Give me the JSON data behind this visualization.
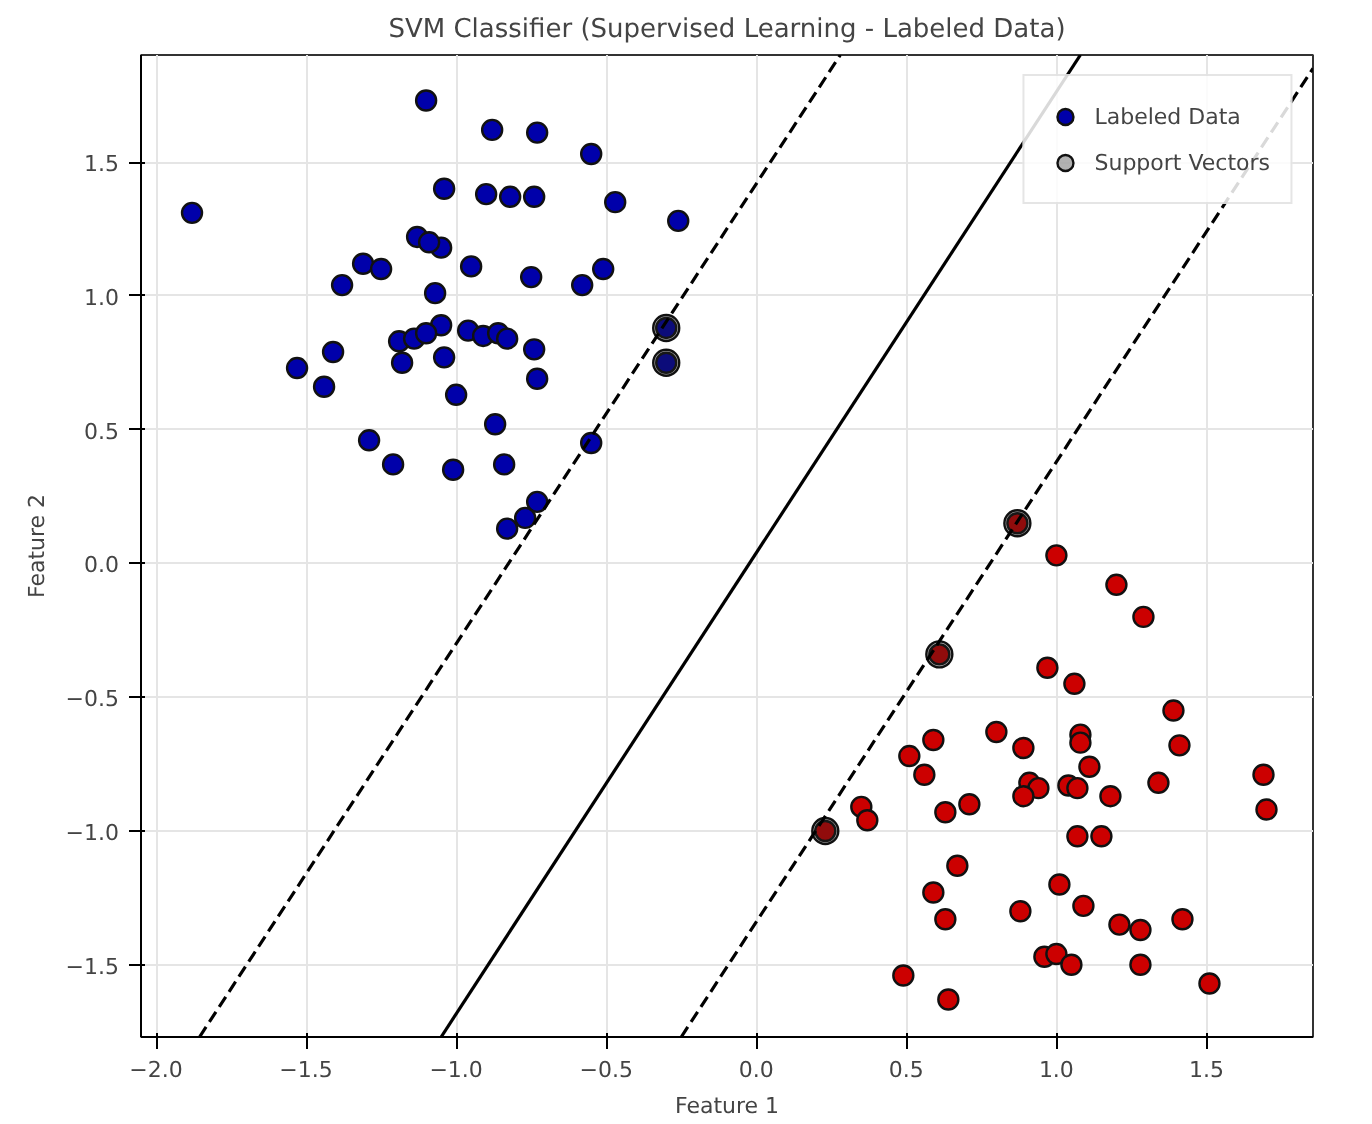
{
  "chart_data": {
    "type": "scatter",
    "title": "SVM Classifier (Supervised Learning - Labeled Data)",
    "xlabel": "Feature 1",
    "ylabel": "Feature 2",
    "xlim": [
      -2.05,
      1.855
    ],
    "ylim": [
      -1.77,
      1.9
    ],
    "xticks": [
      {
        "value": -2.0,
        "label": "−2.0"
      },
      {
        "value": -1.5,
        "label": "−1.5"
      },
      {
        "value": -1.0,
        "label": "−1.0"
      },
      {
        "value": -0.5,
        "label": "−0.5"
      },
      {
        "value": 0.0,
        "label": "0.0"
      },
      {
        "value": 0.5,
        "label": "0.5"
      },
      {
        "value": 1.0,
        "label": "1.0"
      },
      {
        "value": 1.5,
        "label": "1.5"
      }
    ],
    "yticks": [
      {
        "value": -1.5,
        "label": "−1.5"
      },
      {
        "value": -1.0,
        "label": "−1.0"
      },
      {
        "value": -0.5,
        "label": "−0.5"
      },
      {
        "value": 0.0,
        "label": "0.0"
      },
      {
        "value": 0.5,
        "label": "0.5"
      },
      {
        "value": 1.0,
        "label": "1.0"
      },
      {
        "value": 1.5,
        "label": "1.5"
      }
    ],
    "grid": true,
    "legend": "top right",
    "marker": "circle",
    "series": [
      {
        "name": "Labeled Data",
        "color": "#0000aa",
        "x": [
          -1.1,
          -0.88,
          -0.73,
          -0.55,
          -1.88,
          -1.04,
          -0.9,
          -0.82,
          -0.74,
          -0.47,
          -0.26,
          -1.13,
          -1.05,
          -1.09,
          -1.31,
          -1.25,
          -1.38,
          -0.95,
          -0.75,
          -0.51,
          -0.58,
          -1.07,
          -0.3,
          -0.3,
          -1.05,
          -1.19,
          -1.14,
          -1.1,
          -0.96,
          -0.91,
          -0.86,
          -0.83,
          -0.74,
          -1.18,
          -1.04,
          -1.41,
          -1.53,
          -1.44,
          -0.73,
          -1.0,
          -0.87,
          -0.55,
          -1.29,
          -1.21,
          -1.01,
          -0.84,
          -0.73,
          -0.77,
          -0.83
        ],
        "values": [
          1.73,
          1.62,
          1.61,
          1.53,
          1.31,
          1.4,
          1.38,
          1.37,
          1.37,
          1.35,
          1.28,
          1.22,
          1.18,
          1.2,
          1.12,
          1.1,
          1.04,
          1.11,
          1.07,
          1.1,
          1.04,
          1.01,
          0.88,
          0.75,
          0.89,
          0.83,
          0.84,
          0.86,
          0.87,
          0.85,
          0.86,
          0.84,
          0.8,
          0.75,
          0.77,
          0.79,
          0.73,
          0.66,
          0.69,
          0.63,
          0.52,
          0.45,
          0.46,
          0.37,
          0.35,
          0.37,
          0.23,
          0.17,
          0.13
        ]
      },
      {
        "color": "#cc0000",
        "x": [
          0.87,
          1.0,
          1.2,
          1.29,
          0.61,
          0.97,
          1.06,
          1.39,
          1.41,
          0.59,
          0.8,
          0.89,
          1.08,
          1.08,
          1.11,
          0.51,
          0.56,
          1.69,
          1.7,
          0.91,
          0.94,
          0.89,
          1.04,
          1.07,
          1.18,
          1.34,
          0.35,
          0.37,
          0.63,
          0.71,
          0.23,
          1.07,
          1.15,
          0.67,
          0.59,
          0.63,
          0.88,
          1.01,
          1.09,
          1.21,
          1.28,
          1.42,
          0.96,
          1.0,
          1.05,
          1.28,
          0.49,
          1.51,
          0.64
        ],
        "values": [
          0.15,
          0.03,
          -0.08,
          -0.2,
          -0.34,
          -0.39,
          -0.45,
          -0.55,
          -0.68,
          -0.66,
          -0.63,
          -0.69,
          -0.64,
          -0.67,
          -0.76,
          -0.72,
          -0.79,
          -0.79,
          -0.92,
          -0.82,
          -0.84,
          -0.87,
          -0.83,
          -0.84,
          -0.87,
          -0.82,
          -0.91,
          -0.96,
          -0.93,
          -0.9,
          -1.0,
          -1.02,
          -1.02,
          -1.13,
          -1.23,
          -1.33,
          -1.3,
          -1.2,
          -1.28,
          -1.35,
          -1.37,
          -1.33,
          -1.47,
          -1.46,
          -1.5,
          -1.5,
          -1.54,
          -1.57,
          -1.63
        ]
      },
      {
        "name": "Support Vectors",
        "color": "#222222",
        "x": [
          -0.3,
          -0.3,
          0.87,
          0.61,
          0.23
        ],
        "values": [
          0.88,
          0.75,
          0.15,
          -0.34,
          -1.0
        ]
      },
      {
        "type": "line",
        "marker": "none",
        "color": "#000000",
        "line_style": "solid",
        "x": [
          -1.05,
          1.08
        ],
        "values": [
          -1.77,
          1.9
        ]
      },
      {
        "type": "line",
        "marker": "none",
        "color": "#000000",
        "line_style": "dashed",
        "x": [
          -1.855,
          0.28
        ],
        "values": [
          -1.77,
          1.9
        ]
      },
      {
        "type": "line",
        "marker": "none",
        "color": "#000000",
        "line_style": "dashed",
        "x": [
          -0.25,
          1.855
        ],
        "values": [
          -1.77,
          1.85
        ]
      }
    ]
  }
}
